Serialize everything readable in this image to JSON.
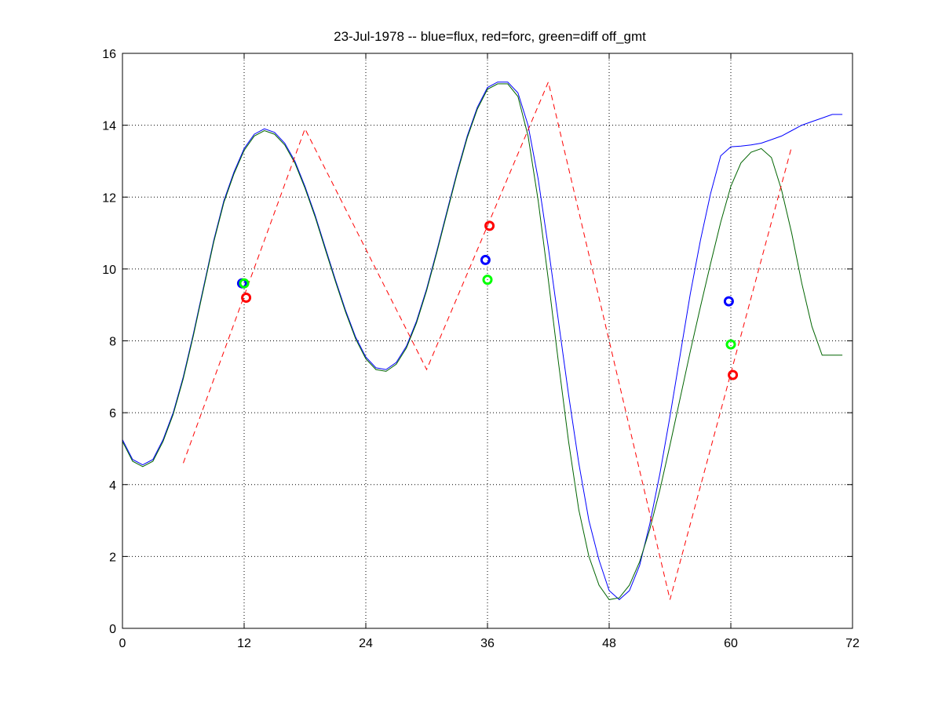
{
  "chart_data": {
    "type": "line",
    "title": "23-Jul-1978 -- blue=flux, red=forc, green=diff off_gmt",
    "xlabel": "",
    "ylabel": "",
    "xlim": [
      0,
      72
    ],
    "ylim": [
      0,
      16
    ],
    "xticks": [
      0,
      12,
      24,
      36,
      48,
      60,
      72
    ],
    "yticks": [
      0,
      2,
      4,
      6,
      8,
      10,
      12,
      14,
      16
    ],
    "grid": true,
    "colors": {
      "blue": "#0000ff",
      "red": "#ff0000",
      "green": "#006400",
      "lightgreen": "#00ff00",
      "axes": "#000000",
      "grid": "#000000"
    },
    "series": [
      {
        "color": "#0000ff",
        "style": "solid",
        "x": [
          0,
          1,
          2,
          3,
          4,
          5,
          6,
          7,
          8,
          9,
          10,
          11,
          12,
          13,
          14,
          15,
          16,
          17,
          18,
          19,
          20,
          21,
          22,
          23,
          24,
          25,
          26,
          27,
          28,
          29,
          30,
          31,
          32,
          33,
          34,
          35,
          36,
          37,
          38,
          39,
          40,
          41,
          42,
          43,
          44,
          45,
          46,
          47,
          48,
          49,
          50,
          51,
          52,
          53,
          54,
          55,
          56,
          57,
          58,
          59,
          60,
          61,
          62,
          63,
          64,
          65,
          66,
          67,
          68,
          69,
          70,
          71
        ],
        "y": [
          5.25,
          4.7,
          4.55,
          4.7,
          5.25,
          6.0,
          7.0,
          8.2,
          9.5,
          10.8,
          11.9,
          12.7,
          13.35,
          13.75,
          13.9,
          13.8,
          13.5,
          13.0,
          12.3,
          11.5,
          10.6,
          9.7,
          8.85,
          8.1,
          7.55,
          7.25,
          7.2,
          7.4,
          7.85,
          8.55,
          9.45,
          10.5,
          11.6,
          12.7,
          13.7,
          14.5,
          15.05,
          15.2,
          15.2,
          14.9,
          14.0,
          12.5,
          10.6,
          8.55,
          6.5,
          4.6,
          3.0,
          1.9,
          1.05,
          0.8,
          1.05,
          1.75,
          2.9,
          4.3,
          5.9,
          7.6,
          9.3,
          10.8,
          12.1,
          13.15,
          13.4,
          13.42,
          13.45,
          13.5,
          13.6,
          13.7,
          13.85,
          14.0,
          14.1,
          14.2,
          14.3,
          14.3
        ]
      },
      {
        "color": "#006400",
        "style": "solid",
        "x": [
          0,
          1,
          2,
          3,
          4,
          5,
          6,
          7,
          8,
          9,
          10,
          11,
          12,
          13,
          14,
          15,
          16,
          17,
          18,
          19,
          20,
          21,
          22,
          23,
          24,
          25,
          26,
          27,
          28,
          29,
          30,
          31,
          32,
          33,
          34,
          35,
          36,
          37,
          38,
          39,
          40,
          41,
          42,
          43,
          44,
          45,
          46,
          47,
          48,
          49,
          50,
          51,
          52,
          53,
          54,
          55,
          56,
          57,
          58,
          59,
          60,
          61,
          62,
          63,
          64,
          65,
          66,
          67,
          68,
          69,
          70,
          71
        ],
        "y": [
          5.2,
          4.65,
          4.5,
          4.65,
          5.2,
          5.95,
          6.95,
          8.15,
          9.45,
          10.75,
          11.85,
          12.65,
          13.3,
          13.7,
          13.85,
          13.75,
          13.45,
          12.95,
          12.25,
          11.45,
          10.55,
          9.65,
          8.8,
          8.05,
          7.5,
          7.2,
          7.15,
          7.35,
          7.8,
          8.5,
          9.4,
          10.45,
          11.55,
          12.65,
          13.65,
          14.45,
          15.0,
          15.15,
          15.15,
          14.8,
          13.7,
          11.9,
          9.7,
          7.4,
          5.2,
          3.3,
          2.0,
          1.2,
          0.8,
          0.85,
          1.2,
          1.85,
          2.75,
          3.85,
          5.1,
          6.4,
          7.7,
          8.95,
          10.15,
          11.3,
          12.3,
          12.95,
          13.25,
          13.35,
          13.1,
          12.2,
          11.0,
          9.6,
          8.4,
          7.6,
          7.6,
          7.6
        ]
      },
      {
        "color": "#ff0000",
        "style": "dashed",
        "x": [
          6,
          18,
          30,
          42,
          54,
          66
        ],
        "y": [
          4.6,
          13.9,
          7.2,
          15.2,
          0.8,
          13.4
        ]
      }
    ],
    "markers": [
      {
        "x": 11.8,
        "y": 9.6,
        "color": "#0000ff"
      },
      {
        "x": 12.0,
        "y": 9.6,
        "color": "#00ff00"
      },
      {
        "x": 12.2,
        "y": 9.2,
        "color": "#ff0000"
      },
      {
        "x": 35.8,
        "y": 10.25,
        "color": "#0000ff"
      },
      {
        "x": 36.0,
        "y": 9.7,
        "color": "#00ff00"
      },
      {
        "x": 36.2,
        "y": 11.2,
        "color": "#ff0000"
      },
      {
        "x": 59.8,
        "y": 9.1,
        "color": "#0000ff"
      },
      {
        "x": 60.0,
        "y": 7.9,
        "color": "#00ff00"
      },
      {
        "x": 60.2,
        "y": 7.05,
        "color": "#ff0000"
      }
    ]
  }
}
